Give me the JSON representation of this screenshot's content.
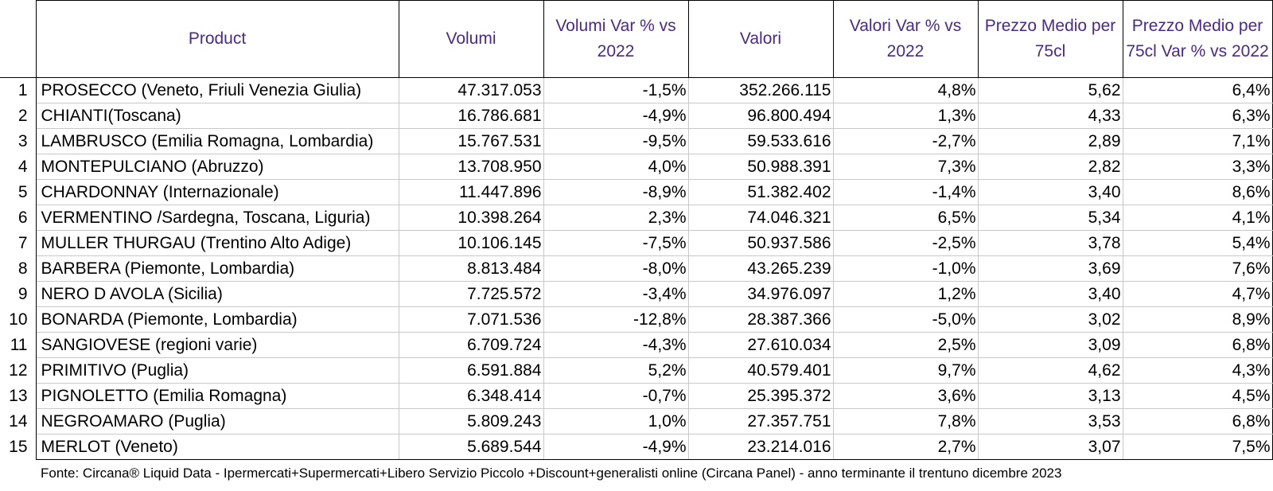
{
  "headers": {
    "product": "Product",
    "volumi": "Volumi",
    "volumi_var": "Volumi Var % vs 2022",
    "valori": "Valori",
    "valori_var": "Valori Var % vs 2022",
    "prezzo": "Prezzo Medio per 75cl",
    "prezzo_var": "Prezzo Medio per 75cl Var % vs 2022"
  },
  "rows": [
    {
      "rank": "1",
      "product": "PROSECCO  (Veneto, Friuli Venezia Giulia)",
      "volumi": "47.317.053",
      "volumi_var": "-1,5%",
      "valori": "352.266.115",
      "valori_var": "4,8%",
      "prezzo": "5,62",
      "prezzo_var": "6,4%"
    },
    {
      "rank": "2",
      "product": "CHIANTI(Toscana)",
      "volumi": "16.786.681",
      "volumi_var": "-4,9%",
      "valori": "96.800.494",
      "valori_var": "1,3%",
      "prezzo": "4,33",
      "prezzo_var": "6,3%"
    },
    {
      "rank": "3",
      "product": "LAMBRUSCO (Emilia Romagna, Lombardia)",
      "volumi": "15.767.531",
      "volumi_var": "-9,5%",
      "valori": "59.533.616",
      "valori_var": "-2,7%",
      "prezzo": "2,89",
      "prezzo_var": "7,1%"
    },
    {
      "rank": "4",
      "product": "MONTEPULCIANO (Abruzzo)",
      "volumi": "13.708.950",
      "volumi_var": "4,0%",
      "valori": "50.988.391",
      "valori_var": "7,3%",
      "prezzo": "2,82",
      "prezzo_var": "3,3%"
    },
    {
      "rank": "5",
      "product": "CHARDONNAY (Internazionale)",
      "volumi": "11.447.896",
      "volumi_var": "-8,9%",
      "valori": "51.382.402",
      "valori_var": "-1,4%",
      "prezzo": "3,40",
      "prezzo_var": "8,6%"
    },
    {
      "rank": "6",
      "product": "VERMENTINO /Sardegna, Toscana, Liguria)",
      "volumi": "10.398.264",
      "volumi_var": "2,3%",
      "valori": "74.046.321",
      "valori_var": "6,5%",
      "prezzo": "5,34",
      "prezzo_var": "4,1%"
    },
    {
      "rank": "7",
      "product": "MULLER THURGAU (Trentino Alto Adige)",
      "volumi": "10.106.145",
      "volumi_var": "-7,5%",
      "valori": "50.937.586",
      "valori_var": "-2,5%",
      "prezzo": "3,78",
      "prezzo_var": "5,4%"
    },
    {
      "rank": "8",
      "product": "BARBERA (Piemonte, Lombardia)",
      "volumi": "8.813.484",
      "volumi_var": "-8,0%",
      "valori": "43.265.239",
      "valori_var": "-1,0%",
      "prezzo": "3,69",
      "prezzo_var": "7,6%"
    },
    {
      "rank": "9",
      "product": "NERO D AVOLA (Sicilia)",
      "volumi": "7.725.572",
      "volumi_var": "-3,4%",
      "valori": "34.976.097",
      "valori_var": "1,2%",
      "prezzo": "3,40",
      "prezzo_var": "4,7%"
    },
    {
      "rank": "10",
      "product": "BONARDA (Piemonte, Lombardia)",
      "volumi": "7.071.536",
      "volumi_var": "-12,8%",
      "valori": "28.387.366",
      "valori_var": "-5,0%",
      "prezzo": "3,02",
      "prezzo_var": "8,9%"
    },
    {
      "rank": "11",
      "product": "SANGIOVESE (regioni varie)",
      "volumi": "6.709.724",
      "volumi_var": "-4,3%",
      "valori": "27.610.034",
      "valori_var": "2,5%",
      "prezzo": "3,09",
      "prezzo_var": "6,8%"
    },
    {
      "rank": "12",
      "product": "PRIMITIVO (Puglia)",
      "volumi": "6.591.884",
      "volumi_var": "5,2%",
      "valori": "40.579.401",
      "valori_var": "9,7%",
      "prezzo": "4,62",
      "prezzo_var": "4,3%"
    },
    {
      "rank": "13",
      "product": "PIGNOLETTO (Emilia Romagna)",
      "volumi": "6.348.414",
      "volumi_var": "-0,7%",
      "valori": "25.395.372",
      "valori_var": "3,6%",
      "prezzo": "3,13",
      "prezzo_var": "4,5%"
    },
    {
      "rank": "14",
      "product": "NEGROAMARO (Puglia)",
      "volumi": "5.809.243",
      "volumi_var": "1,0%",
      "valori": "27.357.751",
      "valori_var": "7,8%",
      "prezzo": "3,53",
      "prezzo_var": "6,8%"
    },
    {
      "rank": "15",
      "product": "MERLOT (Veneto)",
      "volumi": "5.689.544",
      "volumi_var": "-4,9%",
      "valori": "23.214.016",
      "valori_var": "2,7%",
      "prezzo": "3,07",
      "prezzo_var": "7,5%"
    }
  ],
  "source": "Fonte: Circana® Liquid Data - Ipermercati+Supermercati+Libero Servizio Piccolo +Discount+generalisti online (Circana Panel) - anno terminante il trentuno dicembre 2023",
  "colors": {
    "header_text": "#4a2a85",
    "negative": "#ff0000"
  }
}
